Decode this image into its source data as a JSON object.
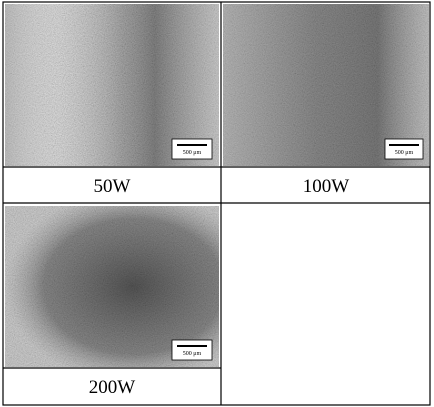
{
  "panels": [
    {
      "label": "50W",
      "scale_bar": "500 μm"
    },
    {
      "label": "100W",
      "scale_bar": "500 μm"
    },
    {
      "label": "200W",
      "scale_bar": "500 μm"
    }
  ]
}
